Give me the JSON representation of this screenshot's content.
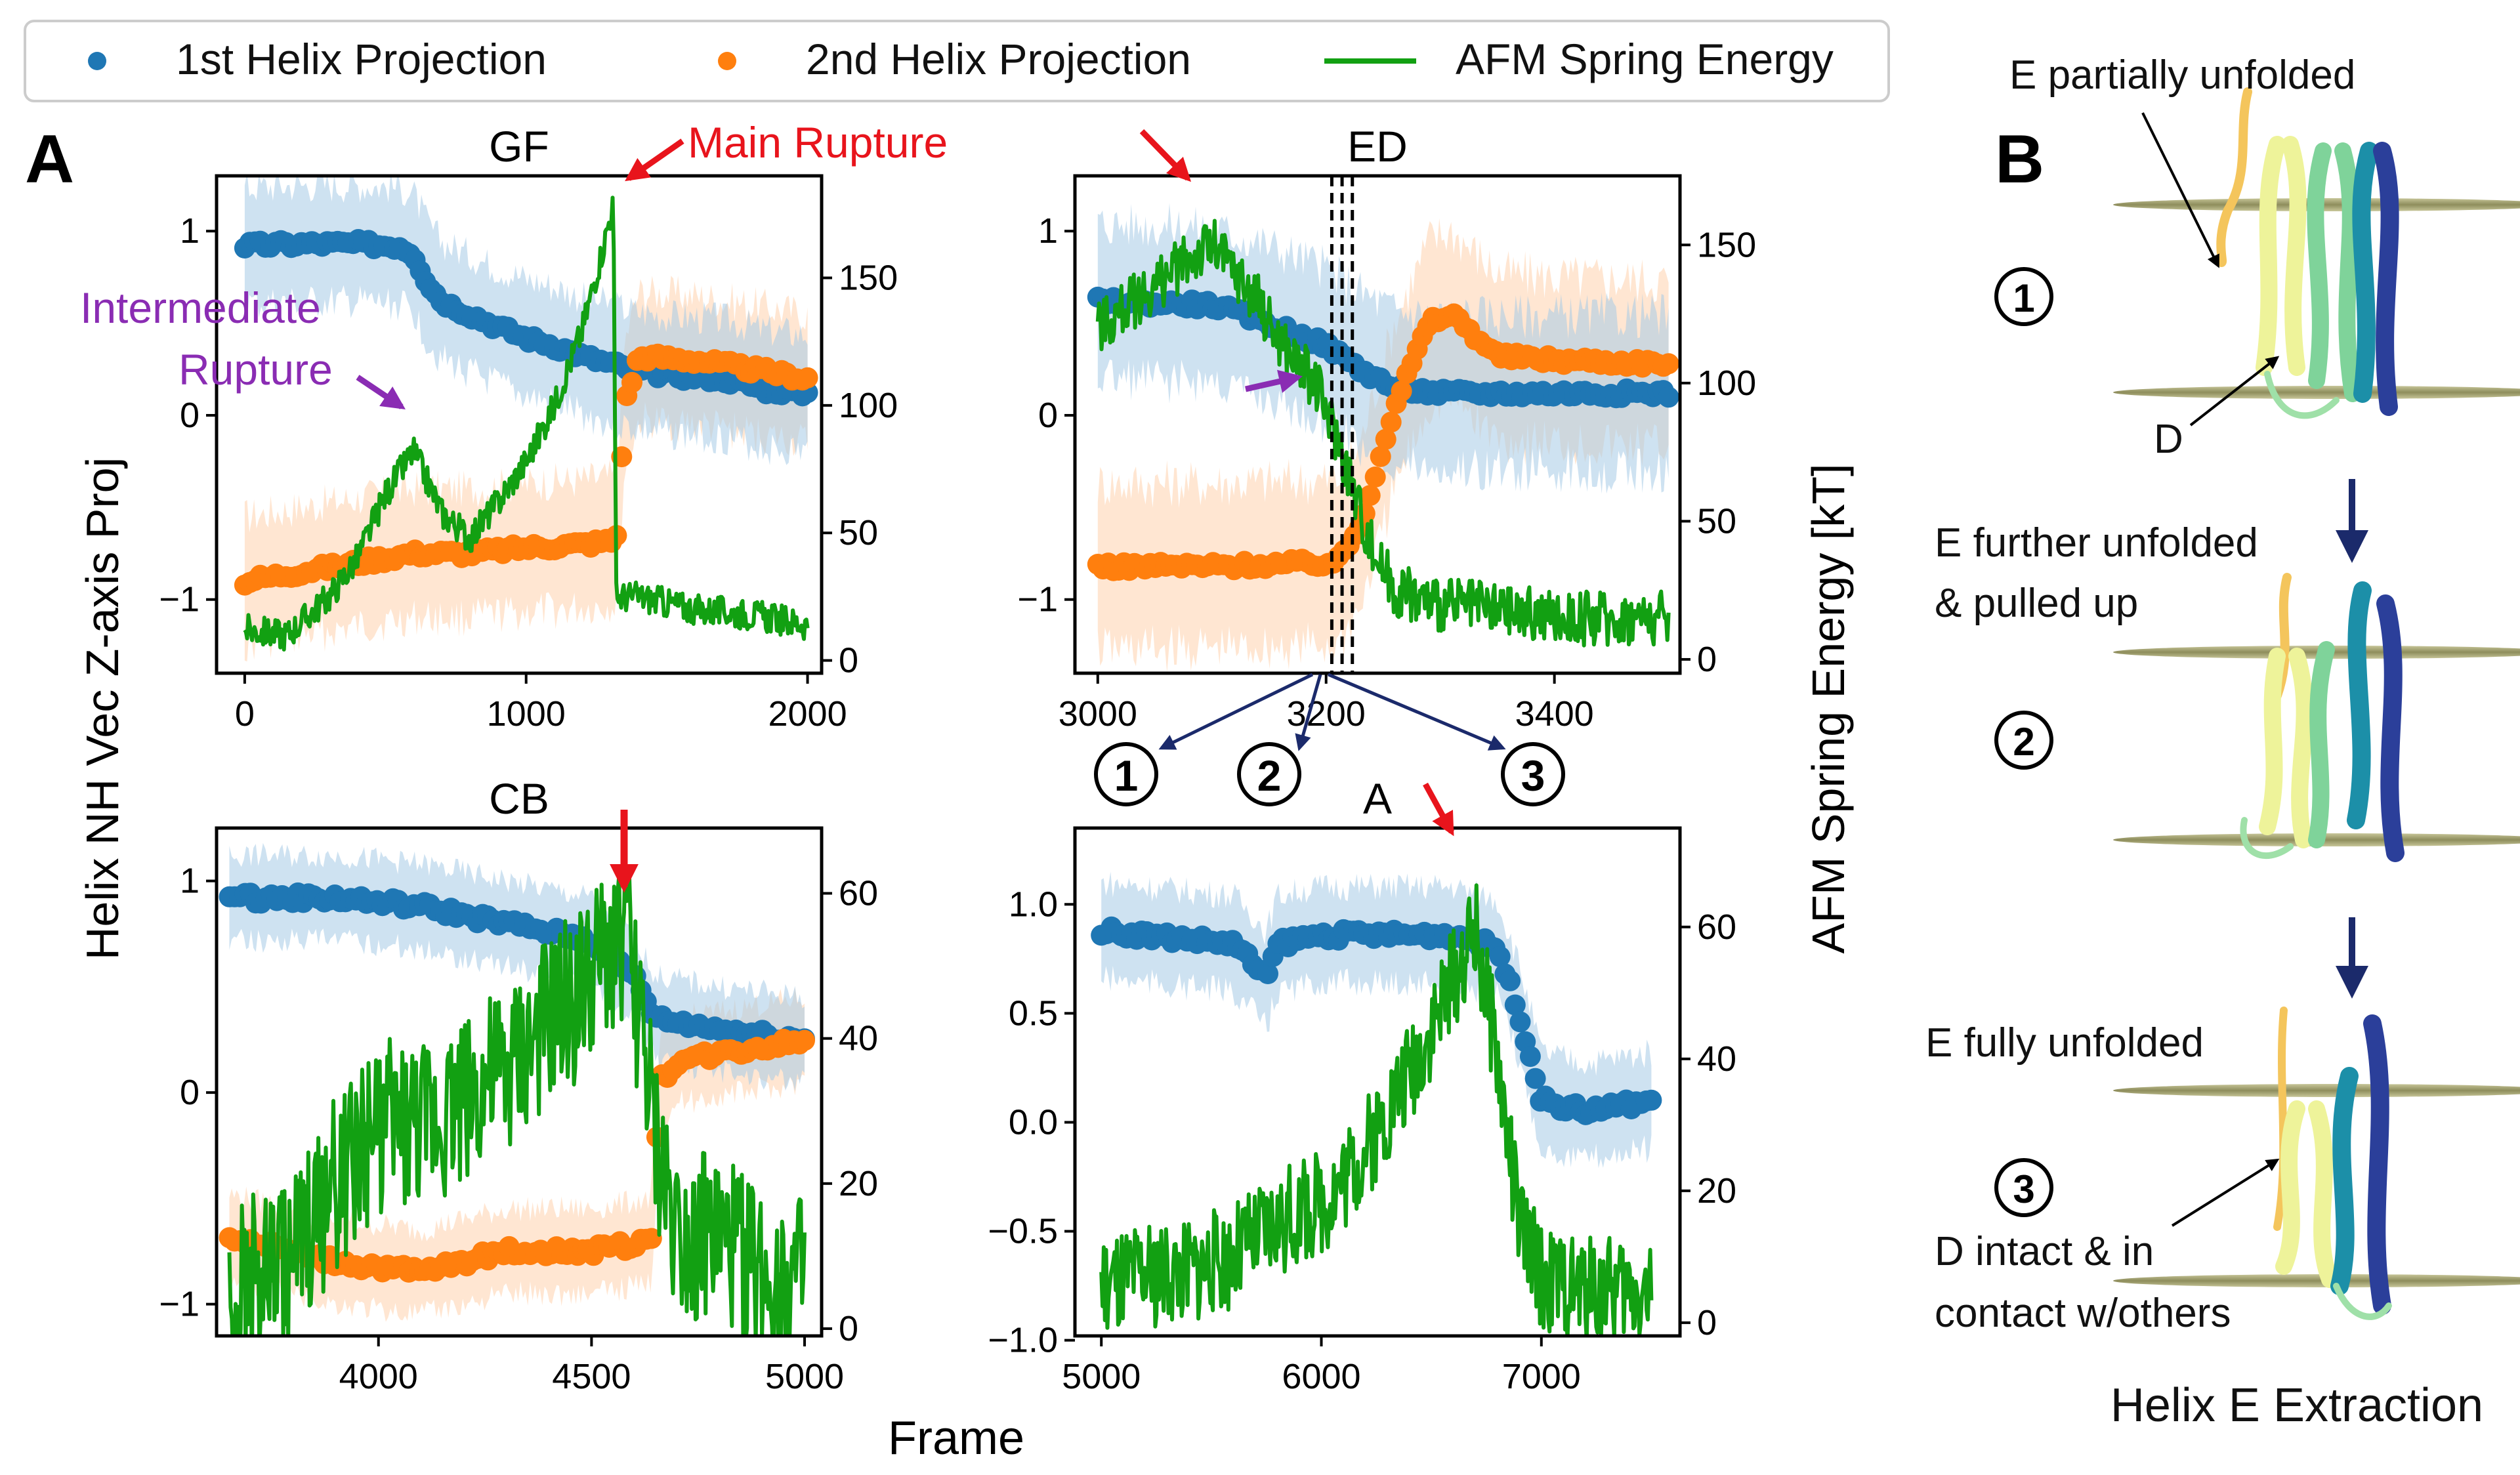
{
  "legend": {
    "series1": "1st Helix Projection",
    "series2": "2nd Helix Projection",
    "series3": "AFM Spring Energy"
  },
  "colors": {
    "blue": "#1f77b4",
    "blue_band": "#a6cbe6",
    "orange": "#ff7f0e",
    "orange_band": "#ffd2ad",
    "green": "#12a012",
    "red": "#e8141c",
    "purple": "#8a2cb3",
    "navy": "#1b2a6b"
  },
  "panel_letters": {
    "a": "A",
    "b": "B"
  },
  "axis_labels": {
    "shared_x": "Frame",
    "shared_y_left": "Helix NH Vec Z-axis Proj",
    "shared_y_right": "AFM Spring Energy [kT]"
  },
  "annotations": {
    "main_rupture": "Main Rupture",
    "intermediate_line1": "Intermediate",
    "intermediate_line2": "Rupture"
  },
  "markers": {
    "m1": "1",
    "m2": "2",
    "m3": "3"
  },
  "panel_b": {
    "title": "Helix E Extraction",
    "label1": "E partially unfolded",
    "label_d": "D",
    "label2_line1": "E further unfolded",
    "label2_line2": "& pulled up",
    "label3": "E fully unfolded",
    "label4_line1": "D intact & in",
    "label4_line2": "contact w/others"
  },
  "chart_data": [
    {
      "type": "line",
      "title": "GF",
      "xlim": [
        -100,
        2050
      ],
      "ylim_left": [
        -1.4,
        1.3
      ],
      "ylim_right": [
        -5,
        190
      ],
      "xticks": [
        0,
        1000,
        2000
      ],
      "xtick_labels": [
        "0",
        "1000",
        "2000"
      ],
      "yticks_left": [
        -1,
        0,
        1
      ],
      "yticks_left_labels": [
        "−1",
        "0",
        "1"
      ],
      "yticks_right": [
        0,
        50,
        100,
        150
      ],
      "yticks_right_labels": [
        "0",
        "50",
        "100",
        "150"
      ],
      "blue_pts": [
        [
          0,
          0.92
        ],
        [
          200,
          0.93
        ],
        [
          400,
          0.93
        ],
        [
          550,
          0.92
        ],
        [
          600,
          0.88
        ],
        [
          650,
          0.72
        ],
        [
          700,
          0.62
        ],
        [
          800,
          0.55
        ],
        [
          900,
          0.48
        ],
        [
          1000,
          0.42
        ],
        [
          1100,
          0.38
        ],
        [
          1200,
          0.32
        ],
        [
          1300,
          0.28
        ],
        [
          1400,
          0.24
        ],
        [
          1500,
          0.22
        ],
        [
          1700,
          0.2
        ],
        [
          1850,
          0.14
        ],
        [
          2000,
          0.12
        ]
      ],
      "blue_band": 0.32,
      "orange_pts": [
        [
          0,
          -0.9
        ],
        [
          200,
          -0.85
        ],
        [
          400,
          -0.8
        ],
        [
          600,
          -0.75
        ],
        [
          800,
          -0.75
        ],
        [
          1000,
          -0.72
        ],
        [
          1200,
          -0.7
        ],
        [
          1320,
          -0.68
        ],
        [
          1350,
          0.05
        ],
        [
          1400,
          0.32
        ],
        [
          1600,
          0.3
        ],
        [
          1800,
          0.25
        ],
        [
          2000,
          0.2
        ]
      ],
      "orange_band": 0.35,
      "green_pts": [
        [
          0,
          12
        ],
        [
          150,
          10
        ],
        [
          300,
          25
        ],
        [
          400,
          40
        ],
        [
          500,
          65
        ],
        [
          600,
          82
        ],
        [
          700,
          58
        ],
        [
          800,
          48
        ],
        [
          900,
          62
        ],
        [
          1000,
          78
        ],
        [
          1100,
          100
        ],
        [
          1200,
          130
        ],
        [
          1280,
          165
        ],
        [
          1310,
          180
        ],
        [
          1320,
          25
        ],
        [
          1400,
          25
        ],
        [
          1600,
          20
        ],
        [
          1800,
          18
        ],
        [
          2000,
          14
        ]
      ],
      "green_noise": 6
    },
    {
      "type": "line",
      "title": "ED",
      "xlim": [
        2980,
        3510
      ],
      "ylim_left": [
        -1.4,
        1.3
      ],
      "ylim_right": [
        -5,
        175
      ],
      "xticks": [
        3000,
        3200,
        3400
      ],
      "xtick_labels": [
        "3000",
        "3200",
        "3400"
      ],
      "yticks_left": [
        -1,
        0,
        1
      ],
      "yticks_left_labels": [
        "−1",
        "0",
        "1"
      ],
      "yticks_right": [
        0,
        50,
        100,
        150
      ],
      "yticks_right_labels": [
        "0",
        "50",
        "100",
        "150"
      ],
      "vlines": [
        3205,
        3214,
        3223
      ],
      "blue_pts": [
        [
          3000,
          0.62
        ],
        [
          3100,
          0.6
        ],
        [
          3150,
          0.5
        ],
        [
          3200,
          0.38
        ],
        [
          3230,
          0.25
        ],
        [
          3260,
          0.15
        ],
        [
          3300,
          0.12
        ],
        [
          3400,
          0.12
        ],
        [
          3500,
          0.12
        ]
      ],
      "blue_band": 0.42,
      "orange_pts": [
        [
          3000,
          -0.82
        ],
        [
          3100,
          -0.82
        ],
        [
          3210,
          -0.8
        ],
        [
          3230,
          -0.6
        ],
        [
          3260,
          0.05
        ],
        [
          3290,
          0.5
        ],
        [
          3310,
          0.55
        ],
        [
          3350,
          0.32
        ],
        [
          3400,
          0.3
        ],
        [
          3500,
          0.28
        ]
      ],
      "orange_band": 0.45,
      "green_pts": [
        [
          3000,
          120
        ],
        [
          3050,
          135
        ],
        [
          3080,
          145
        ],
        [
          3100,
          150
        ],
        [
          3140,
          130
        ],
        [
          3160,
          115
        ],
        [
          3190,
          100
        ],
        [
          3210,
          80
        ],
        [
          3225,
          60
        ],
        [
          3240,
          40
        ],
        [
          3260,
          25
        ],
        [
          3300,
          20
        ],
        [
          3400,
          15
        ],
        [
          3500,
          15
        ]
      ],
      "green_noise": 10
    },
    {
      "type": "line",
      "title": "CB",
      "xlim": [
        3620,
        5040
      ],
      "ylim_left": [
        -1.15,
        1.25
      ],
      "ylim_right": [
        -1,
        69
      ],
      "xticks": [
        4000,
        4500,
        5000
      ],
      "xtick_labels": [
        "4000",
        "4500",
        "5000"
      ],
      "yticks_left": [
        -1,
        0,
        1
      ],
      "yticks_left_labels": [
        "−1",
        "0",
        "1"
      ],
      "yticks_right": [
        0,
        20,
        40,
        60
      ],
      "yticks_right_labels": [
        "0",
        "20",
        "40",
        "60"
      ],
      "blue_pts": [
        [
          3650,
          0.92
        ],
        [
          3900,
          0.92
        ],
        [
          4100,
          0.88
        ],
        [
          4300,
          0.8
        ],
        [
          4500,
          0.72
        ],
        [
          4600,
          0.55
        ],
        [
          4650,
          0.35
        ],
        [
          4800,
          0.3
        ],
        [
          5000,
          0.25
        ]
      ],
      "blue_band": 0.2,
      "orange_pts": [
        [
          3650,
          -0.68
        ],
        [
          3900,
          -0.8
        ],
        [
          4100,
          -0.85
        ],
        [
          4300,
          -0.75
        ],
        [
          4500,
          -0.75
        ],
        [
          4640,
          -0.7
        ],
        [
          4660,
          0.05
        ],
        [
          4700,
          0.15
        ],
        [
          5000,
          0.25
        ]
      ],
      "orange_band": 0.2,
      "green_pts": [
        [
          3650,
          5
        ],
        [
          3800,
          10
        ],
        [
          3900,
          20
        ],
        [
          4000,
          28
        ],
        [
          4100,
          28
        ],
        [
          4200,
          32
        ],
        [
          4300,
          35
        ],
        [
          4400,
          42
        ],
        [
          4500,
          48
        ],
        [
          4580,
          55
        ],
        [
          4620,
          40
        ],
        [
          4650,
          25
        ],
        [
          4700,
          14
        ],
        [
          4800,
          12
        ],
        [
          4900,
          8
        ],
        [
          5000,
          6
        ]
      ],
      "green_noise": 12
    },
    {
      "type": "line",
      "title": "A",
      "xlim": [
        4880,
        7630
      ],
      "ylim_left": [
        -0.98,
        1.35
      ],
      "ylim_right": [
        -2,
        75
      ],
      "xticks": [
        5000,
        6000,
        7000
      ],
      "xtick_labels": [
        "5000",
        "6000",
        "7000"
      ],
      "yticks_left": [
        -1.0,
        -0.5,
        0.0,
        0.5,
        1.0
      ],
      "yticks_left_labels": [
        "−1.0",
        "−0.5",
        "0.0",
        "0.5",
        "1.0"
      ],
      "yticks_right": [
        0,
        20,
        40,
        60
      ],
      "yticks_right_labels": [
        "0",
        "20",
        "40",
        "60"
      ],
      "blue_pts": [
        [
          5000,
          0.88
        ],
        [
          5300,
          0.85
        ],
        [
          5600,
          0.82
        ],
        [
          5700,
          0.72
        ],
        [
          5750,
          0.65
        ],
        [
          5800,
          0.82
        ],
        [
          6000,
          0.86
        ],
        [
          6300,
          0.86
        ],
        [
          6600,
          0.86
        ],
        [
          6800,
          0.8
        ],
        [
          6900,
          0.5
        ],
        [
          7000,
          0.1
        ],
        [
          7200,
          0.05
        ],
        [
          7500,
          0.1
        ]
      ],
      "blue_band": 0.22,
      "green_pts": [
        [
          5000,
          5
        ],
        [
          5200,
          7
        ],
        [
          5400,
          8
        ],
        [
          5600,
          10
        ],
        [
          5800,
          15
        ],
        [
          6000,
          18
        ],
        [
          6200,
          26
        ],
        [
          6400,
          38
        ],
        [
          6600,
          52
        ],
        [
          6700,
          60
        ],
        [
          6800,
          40
        ],
        [
          6900,
          15
        ],
        [
          7000,
          7
        ],
        [
          7200,
          5
        ],
        [
          7500,
          5
        ]
      ],
      "green_noise": 8
    }
  ]
}
